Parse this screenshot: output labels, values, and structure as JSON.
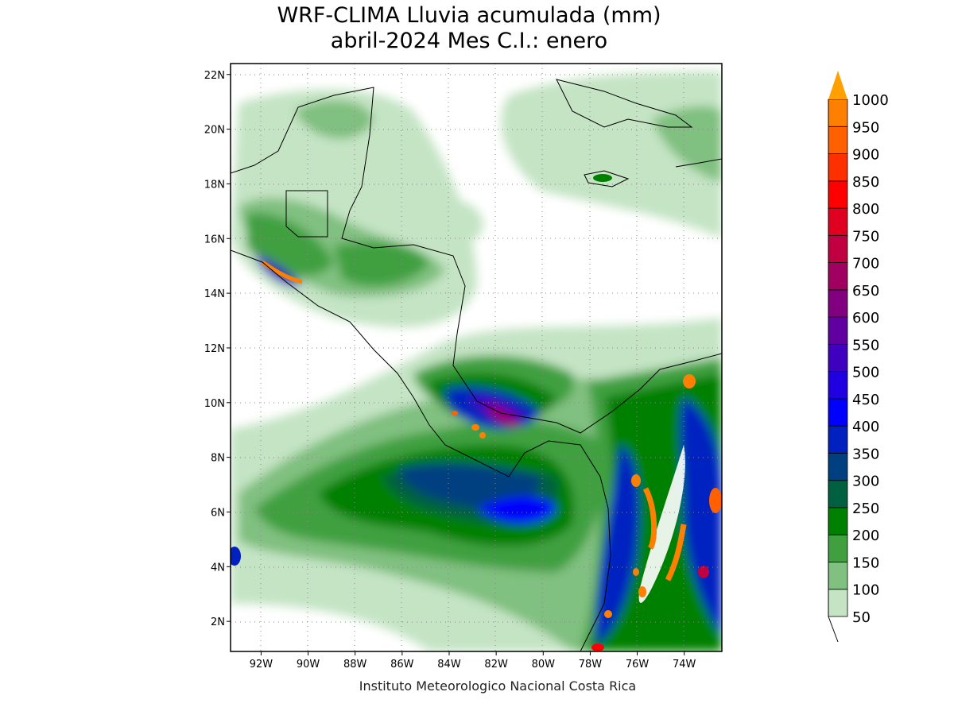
{
  "title_line1": "WRF-CLIMA Lluvia acumulada (mm)",
  "title_line2": "abril-2024 Mes C.I.: enero",
  "credit": "Instituto Meteorologico Nacional Costa Rica",
  "map": {
    "lon_range": [
      -93.3,
      -72.4
    ],
    "lat_range": [
      0.9,
      22.4
    ],
    "lon_ticks": [
      "92W",
      "90W",
      "88W",
      "86W",
      "84W",
      "82W",
      "80W",
      "78W",
      "76W",
      "74W"
    ],
    "lon_tick_values": [
      -92,
      -90,
      -88,
      -86,
      -84,
      -82,
      -80,
      -78,
      -76,
      -74
    ],
    "lat_ticks": [
      "2N",
      "4N",
      "6N",
      "8N",
      "10N",
      "12N",
      "14N",
      "16N",
      "18N",
      "20N",
      "22N"
    ],
    "lat_tick_values": [
      2,
      4,
      6,
      8,
      10,
      12,
      14,
      16,
      18,
      20,
      22
    ]
  },
  "colorbar": {
    "labels": [
      "50",
      "100",
      "150",
      "200",
      "250",
      "300",
      "350",
      "400",
      "450",
      "500",
      "550",
      "600",
      "650",
      "700",
      "750",
      "800",
      "850",
      "900",
      "950",
      "1000"
    ],
    "colors": [
      "#c4e4c4",
      "#80c080",
      "#40a040",
      "#008000",
      "#006040",
      "#004080",
      "#0020c0",
      "#0000ff",
      "#2000e0",
      "#4000c0",
      "#6000a0",
      "#800080",
      "#a00060",
      "#c00040",
      "#e00020",
      "#ff0000",
      "#ff3000",
      "#ff6000",
      "#ff8000"
    ],
    "arrow_color": "#ffa000"
  }
}
